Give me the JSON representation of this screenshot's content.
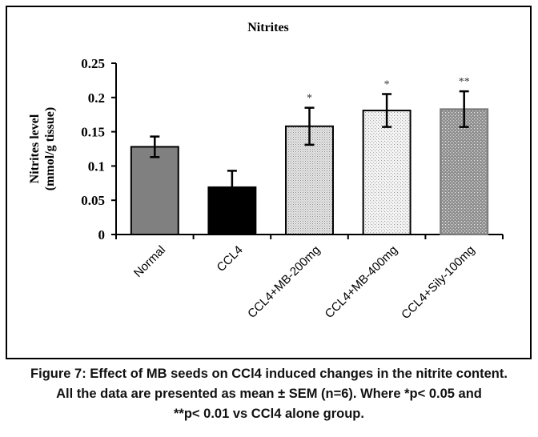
{
  "chart_data": {
    "type": "bar",
    "title": "Nitrites",
    "xlabel": "",
    "ylabel": [
      "Nitrites level",
      "(mmol/g tissue)"
    ],
    "ylim": [
      0,
      0.25
    ],
    "yticks": [
      0,
      0.05,
      0.1,
      0.15,
      0.2,
      0.25
    ],
    "ytick_labels": [
      "0",
      "0.05",
      "0.1",
      "0.15",
      "0.2",
      "0.25"
    ],
    "categories": [
      "Normal",
      "CCL4",
      "CCL4+MB-200mg",
      "CCL4+MB-400mg",
      "CCL4+Sily-100mg"
    ],
    "values": [
      0.128,
      0.069,
      0.158,
      0.181,
      0.183
    ],
    "errors": [
      0.015,
      0.024,
      0.027,
      0.024,
      0.026
    ],
    "error_bars_one_sided": [
      false,
      true,
      false,
      false,
      false
    ],
    "significance": [
      "",
      "",
      "*",
      "*",
      "**"
    ],
    "bar_fills": [
      {
        "type": "solid",
        "color": "#808080"
      },
      {
        "type": "solid",
        "color": "#000000"
      },
      {
        "type": "dense-dots",
        "color": "#9a9a9a"
      },
      {
        "type": "light-dots",
        "color": "#b0b0b0"
      },
      {
        "type": "white-dots-on-gray",
        "color": "#8a8a8a"
      }
    ],
    "grid": false,
    "legend": "none"
  },
  "caption": {
    "lines": [
      "Figure 7: Effect of MB seeds on CCl4 induced changes in the nitrite content.",
      "All the data are presented as mean ± SEM (n=6). Where *p< 0.05 and",
      "**p< 0.01 vs CCl4 alone group."
    ]
  }
}
